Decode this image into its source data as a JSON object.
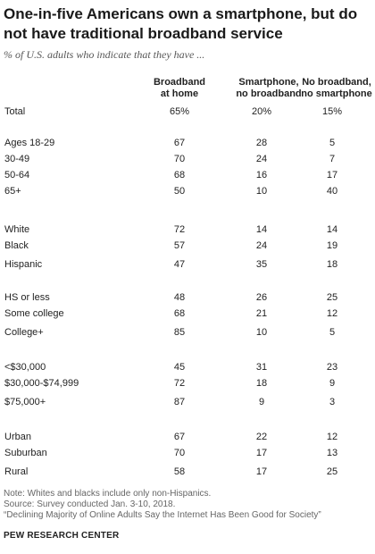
{
  "title": "One-in-five Americans own a smartphone, but do not have traditional broadband service",
  "subtitle": "% of U.S. adults who indicate that they have ...",
  "chart_data": {
    "type": "table",
    "columns": [
      "Broadband\nat home",
      "Smartphone,\nno broadband",
      "No broadband,\nno smartphone"
    ],
    "rows": [
      {
        "label": "Total",
        "values": [
          "65%",
          "20%",
          "15%"
        ]
      },
      {
        "label": "Ages 18-29",
        "values": [
          "67",
          "28",
          "5"
        ]
      },
      {
        "label": "30-49",
        "values": [
          "70",
          "24",
          "7"
        ]
      },
      {
        "label": "50-64",
        "values": [
          "68",
          "16",
          "17"
        ]
      },
      {
        "label": "65+",
        "values": [
          "50",
          "10",
          "40"
        ]
      },
      {
        "label": "White",
        "values": [
          "72",
          "14",
          "14"
        ]
      },
      {
        "label": "Black",
        "values": [
          "57",
          "24",
          "19"
        ]
      },
      {
        "label": "Hispanic",
        "values": [
          "47",
          "35",
          "18"
        ]
      },
      {
        "label": "HS or less",
        "values": [
          "48",
          "26",
          "25"
        ]
      },
      {
        "label": "Some college",
        "values": [
          "68",
          "21",
          "12"
        ]
      },
      {
        "label": "College+",
        "values": [
          "85",
          "10",
          "5"
        ]
      },
      {
        "label": "<$30,000",
        "values": [
          "45",
          "31",
          "23"
        ]
      },
      {
        "label": "$30,000-$74,999",
        "values": [
          "72",
          "18",
          "9"
        ]
      },
      {
        "label": "$75,000+",
        "values": [
          "87",
          "9",
          "3"
        ]
      },
      {
        "label": "Urban",
        "values": [
          "67",
          "22",
          "12"
        ]
      },
      {
        "label": "Suburban",
        "values": [
          "70",
          "17",
          "13"
        ]
      },
      {
        "label": "Rural",
        "values": [
          "58",
          "17",
          "25"
        ]
      }
    ]
  },
  "notes": [
    "Note: Whites and blacks include only non-Hispanics.",
    "Source: Survey conducted Jan. 3-10, 2018.",
    "“Declining Majority of Online Adults Say the Internet Has Been Good for Society”"
  ],
  "brand": "PEW RESEARCH CENTER"
}
